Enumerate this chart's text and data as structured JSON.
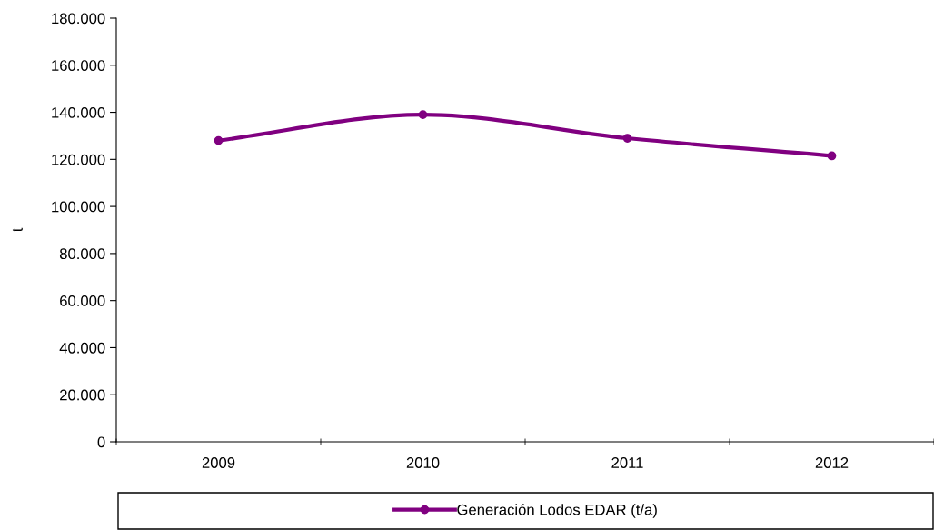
{
  "chart_data": {
    "type": "line",
    "ylabel": "t",
    "categories": [
      "2009",
      "2010",
      "2011",
      "2012"
    ],
    "series": [
      {
        "name": "Generación Lodos EDAR (t/a)",
        "color": "#800080",
        "values": [
          128000,
          139000,
          129000,
          121500
        ]
      }
    ],
    "ylim": [
      0,
      180000
    ],
    "yticks": [
      {
        "value": 0,
        "label": "0"
      },
      {
        "value": 20000,
        "label": "20.000"
      },
      {
        "value": 40000,
        "label": "40.000"
      },
      {
        "value": 60000,
        "label": "60.000"
      },
      {
        "value": 80000,
        "label": "80.000"
      },
      {
        "value": 100000,
        "label": "100.000"
      },
      {
        "value": 120000,
        "label": "120.000"
      },
      {
        "value": 140000,
        "label": "140.000"
      },
      {
        "value": 160000,
        "label": "160.000"
      },
      {
        "value": 180000,
        "label": "180.000"
      }
    ],
    "marker": "circle",
    "line_style": "solid",
    "grid": false,
    "legend": "bottom"
  }
}
